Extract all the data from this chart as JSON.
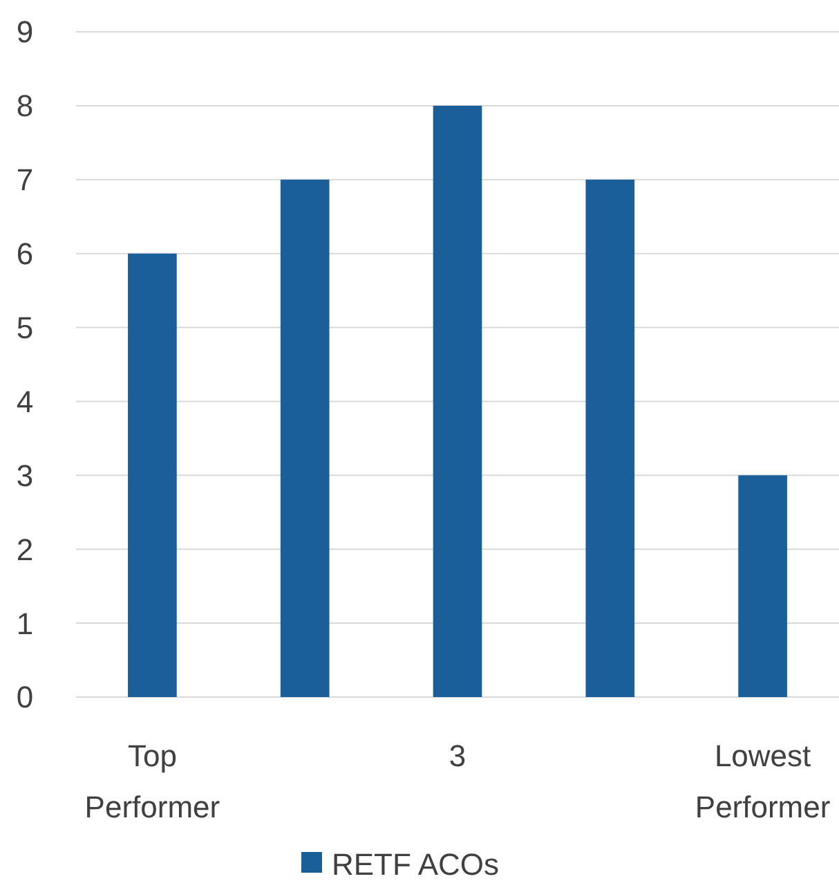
{
  "chart_data": {
    "type": "bar",
    "categories": [
      "Top Performer",
      null,
      "3",
      null,
      "Lowest Performer"
    ],
    "series": [
      {
        "name": "RETF ACOs",
        "color": "#1a5f97",
        "values": [
          6,
          7,
          8,
          7,
          3
        ]
      }
    ],
    "ylim": [
      0,
      9
    ],
    "yticks": [
      0,
      1,
      2,
      3,
      4,
      5,
      6,
      7,
      8,
      9
    ],
    "grid": "y",
    "legend": "bottom"
  }
}
